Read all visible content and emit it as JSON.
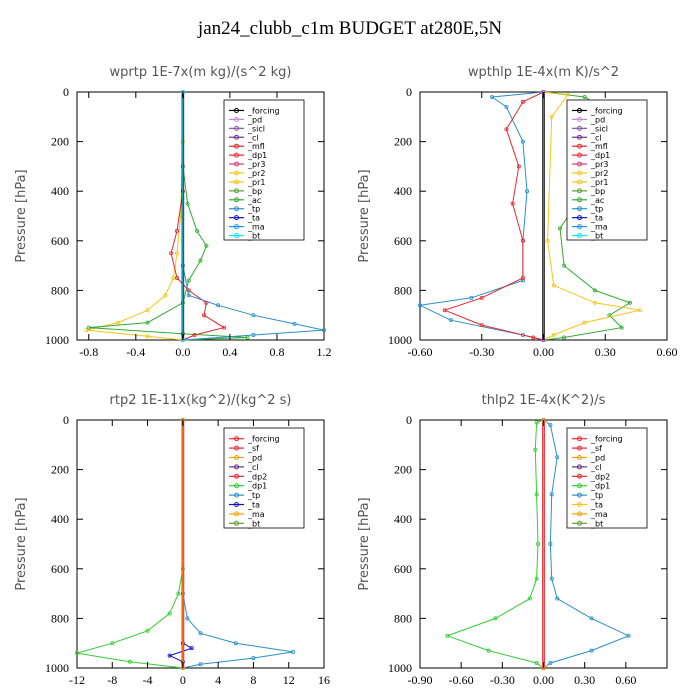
{
  "page": {
    "title": "jan24_clubb_c1m  BUDGET at280E,5N"
  },
  "chart_data": [
    {
      "type": "line",
      "title": "wprtp   1E-7x(m kg)/(s^2 kg)",
      "ylabel": "Pressure [hPa]",
      "xlim": [
        -0.9,
        1.2
      ],
      "ylim": [
        1000,
        0
      ],
      "xticks": [
        "-0.8",
        "-0.4",
        "0.0",
        "0.4",
        "0.8",
        "1.2"
      ],
      "yticks": [
        "0",
        "200",
        "400",
        "600",
        "800",
        "1000"
      ],
      "legend_position": "top-right",
      "legend": [
        "_forcing",
        "_pd",
        "_sicl",
        "_cl",
        "_mfl",
        "_dp1",
        "_pr3",
        "_pr2",
        "_pr1",
        "_bp",
        "_ac",
        "_tp",
        "_ta",
        "_ma",
        "_bt"
      ],
      "series": [
        {
          "name": "_pr1",
          "color": "#f5c518",
          "points": [
            [
              0,
              0
            ],
            [
              0,
              200
            ],
            [
              -0.02,
              500
            ],
            [
              -0.05,
              650
            ],
            [
              -0.08,
              750
            ],
            [
              -0.15,
              820
            ],
            [
              -0.3,
              880
            ],
            [
              -0.55,
              930
            ],
            [
              -0.82,
              960
            ],
            [
              -0.3,
              985
            ],
            [
              0,
              1000
            ]
          ]
        },
        {
          "name": "_ac",
          "color": "#33aa33",
          "points": [
            [
              0,
              0
            ],
            [
              0,
              300
            ],
            [
              0.04,
              450
            ],
            [
              0.12,
              560
            ],
            [
              0.2,
              620
            ],
            [
              0.15,
              680
            ],
            [
              0.05,
              760
            ],
            [
              0,
              850
            ],
            [
              -0.3,
              930
            ],
            [
              -0.8,
              950
            ],
            [
              0,
              975
            ],
            [
              0.55,
              990
            ],
            [
              0,
              1000
            ]
          ]
        },
        {
          "name": "_dp1",
          "color": "#e8262d",
          "points": [
            [
              0,
              0
            ],
            [
              0,
              400
            ],
            [
              -0.05,
              560
            ],
            [
              -0.1,
              650
            ],
            [
              -0.05,
              750
            ],
            [
              0.05,
              800
            ],
            [
              0.2,
              850
            ],
            [
              0.18,
              900
            ],
            [
              0.35,
              950
            ],
            [
              0.1,
              980
            ],
            [
              0,
              1000
            ]
          ]
        },
        {
          "name": "_tp",
          "color": "#2a8fc8",
          "points": [
            [
              0,
              0
            ],
            [
              0,
              700
            ],
            [
              0.05,
              820
            ],
            [
              0.3,
              860
            ],
            [
              0.6,
              900
            ],
            [
              0.95,
              935
            ],
            [
              1.2,
              960
            ],
            [
              0.6,
              980
            ],
            [
              0,
              1000
            ]
          ]
        },
        {
          "name": "_forcing",
          "color": "#000000",
          "points": [
            [
              0,
              0
            ],
            [
              0,
              1000
            ]
          ]
        },
        {
          "name": "_pd",
          "color": "#c08ad6",
          "points": [
            [
              0,
              0
            ],
            [
              0,
              1000
            ]
          ]
        },
        {
          "name": "_sicl",
          "color": "#8a4fb0",
          "points": [
            [
              0,
              0
            ],
            [
              0,
              1000
            ]
          ]
        },
        {
          "name": "_bt",
          "color": "#00e5ff",
          "points": [
            [
              0,
              0
            ],
            [
              0,
              1000
            ]
          ]
        }
      ]
    },
    {
      "type": "line",
      "title": "wpthlp   1E-4x(m K)/s^2",
      "ylabel": "Pressure [hPa]",
      "xlim": [
        -0.6,
        0.6
      ],
      "ylim": [
        1000,
        0
      ],
      "xticks": [
        "-0.60",
        "-0.30",
        "0.00",
        "0.30",
        "0.60"
      ],
      "yticks": [
        "0",
        "200",
        "400",
        "600",
        "800",
        "1000"
      ],
      "legend_position": "top-right",
      "legend": [
        "_forcing",
        "_pd",
        "_sicl",
        "_cl",
        "_mfl",
        "_dp1",
        "_pr3",
        "_pr2",
        "_pr1",
        "_bp",
        "_ac",
        "_tp",
        "_ta",
        "_ma",
        "_bt"
      ],
      "series": [
        {
          "name": "_ac",
          "color": "#33aa33",
          "points": [
            [
              0,
              0
            ],
            [
              0.2,
              20
            ],
            [
              0.32,
              80
            ],
            [
              0.33,
              250
            ],
            [
              0.2,
              400
            ],
            [
              0.08,
              550
            ],
            [
              0.1,
              700
            ],
            [
              0.25,
              800
            ],
            [
              0.42,
              850
            ],
            [
              0.32,
              900
            ],
            [
              0.38,
              950
            ],
            [
              0.1,
              990
            ],
            [
              0,
              1000
            ]
          ]
        },
        {
          "name": "_tp",
          "color": "#2a8fc8",
          "points": [
            [
              0,
              0
            ],
            [
              -0.25,
              20
            ],
            [
              -0.18,
              60
            ],
            [
              -0.1,
              200
            ],
            [
              -0.08,
              400
            ],
            [
              -0.1,
              600
            ],
            [
              -0.1,
              760
            ],
            [
              -0.35,
              830
            ],
            [
              -0.6,
              860
            ],
            [
              -0.45,
              920
            ],
            [
              -0.1,
              980
            ],
            [
              0,
              1000
            ]
          ]
        },
        {
          "name": "_pr1",
          "color": "#f5c518",
          "points": [
            [
              0,
              0
            ],
            [
              0.12,
              10
            ],
            [
              0.04,
              100
            ],
            [
              0.02,
              600
            ],
            [
              0.05,
              780
            ],
            [
              0.25,
              850
            ],
            [
              0.47,
              880
            ],
            [
              0.2,
              930
            ],
            [
              0.05,
              980
            ],
            [
              0,
              1000
            ]
          ]
        },
        {
          "name": "_dp1",
          "color": "#e8262d",
          "points": [
            [
              0,
              0
            ],
            [
              -0.1,
              40
            ],
            [
              -0.18,
              150
            ],
            [
              -0.12,
              300
            ],
            [
              -0.15,
              450
            ],
            [
              -0.1,
              600
            ],
            [
              -0.1,
              750
            ],
            [
              -0.3,
              830
            ],
            [
              -0.48,
              880
            ],
            [
              -0.3,
              940
            ],
            [
              -0.05,
              990
            ],
            [
              0,
              1000
            ]
          ]
        },
        {
          "name": "_forcing",
          "color": "#000000",
          "points": [
            [
              0,
              0
            ],
            [
              0,
              1000
            ]
          ]
        },
        {
          "name": "_pd",
          "color": "#c08ad6",
          "points": [
            [
              0,
              0
            ],
            [
              0,
              1000
            ]
          ]
        },
        {
          "name": "_sicl",
          "color": "#8a4fb0",
          "points": [
            [
              0,
              0
            ],
            [
              0,
              1000
            ]
          ]
        }
      ]
    },
    {
      "type": "line",
      "title": "rtp2   1E-11x(kg^2)/(kg^2 s)",
      "ylabel": "Pressure [hPa]",
      "xlim": [
        -12,
        16
      ],
      "ylim": [
        1000,
        0
      ],
      "xticks": [
        "-12",
        "-8",
        "-4",
        "0",
        "4",
        "8",
        "12",
        "16"
      ],
      "yticks": [
        "0",
        "200",
        "400",
        "600",
        "800",
        "1000"
      ],
      "legend_position": "top-right",
      "legend": [
        "_forcing",
        "_sf",
        "_pd",
        "_cl",
        "_dp2",
        "_dp1",
        "_tp",
        "_ta",
        "_ma",
        "_bt"
      ],
      "series": [
        {
          "name": "_dp1",
          "color": "#33cc33",
          "points": [
            [
              0,
              0
            ],
            [
              0,
              600
            ],
            [
              -0.5,
              700
            ],
            [
              -1.5,
              780
            ],
            [
              -4,
              850
            ],
            [
              -8,
              900
            ],
            [
              -12,
              940
            ],
            [
              -6,
              975
            ],
            [
              0,
              1000
            ]
          ]
        },
        {
          "name": "_tp",
          "color": "#2a8fc8",
          "points": [
            [
              0,
              0
            ],
            [
              0,
              700
            ],
            [
              0.5,
              800
            ],
            [
              2,
              860
            ],
            [
              6,
              900
            ],
            [
              12.5,
              935
            ],
            [
              8,
              960
            ],
            [
              2,
              985
            ],
            [
              0,
              1000
            ]
          ]
        },
        {
          "name": "_ta",
          "color": "#1010cc",
          "points": [
            [
              0,
              0
            ],
            [
              0,
              900
            ],
            [
              1,
              920
            ],
            [
              -1.5,
              950
            ],
            [
              0,
              975
            ],
            [
              0,
              1000
            ]
          ]
        },
        {
          "name": "_forcing",
          "color": "#e8262d",
          "points": [
            [
              0,
              0
            ],
            [
              0,
              1000
            ]
          ]
        },
        {
          "name": "_sf",
          "color": "#e8262d",
          "points": [
            [
              0,
              0
            ],
            [
              0,
              1000
            ]
          ]
        },
        {
          "name": "_pd",
          "color": "#f5a000",
          "points": [
            [
              0,
              0
            ],
            [
              0,
              1000
            ]
          ]
        }
      ]
    },
    {
      "type": "line",
      "title": "thlp2   1E-4x(K^2)/s",
      "ylabel": "Pressure [hPa]",
      "xlim": [
        -0.9,
        0.9
      ],
      "ylim": [
        1000,
        0
      ],
      "xticks": [
        "-0.90",
        "-0.60",
        "-0.30",
        "0.00",
        "0.30",
        "0.60"
      ],
      "yticks": [
        "0",
        "200",
        "400",
        "600",
        "800",
        "1000"
      ],
      "legend_position": "top-right",
      "legend": [
        "_forcing",
        "_sf",
        "_pd",
        "_cl",
        "_dp2",
        "_dp1",
        "_tp",
        "_ta",
        "_ma",
        "_bt"
      ],
      "series": [
        {
          "name": "_dp1",
          "color": "#33cc33",
          "points": [
            [
              0,
              0
            ],
            [
              -0.05,
              10
            ],
            [
              -0.06,
              120
            ],
            [
              -0.05,
              300
            ],
            [
              -0.04,
              500
            ],
            [
              -0.05,
              640
            ],
            [
              -0.1,
              720
            ],
            [
              -0.35,
              800
            ],
            [
              -0.7,
              870
            ],
            [
              -0.4,
              930
            ],
            [
              -0.05,
              980
            ],
            [
              0,
              1000
            ]
          ]
        },
        {
          "name": "_tp",
          "color": "#2a8fc8",
          "points": [
            [
              0,
              0
            ],
            [
              0.05,
              20
            ],
            [
              0.1,
              150
            ],
            [
              0.06,
              300
            ],
            [
              0.05,
              500
            ],
            [
              0.06,
              640
            ],
            [
              0.1,
              720
            ],
            [
              0.35,
              800
            ],
            [
              0.62,
              870
            ],
            [
              0.35,
              930
            ],
            [
              0.05,
              980
            ],
            [
              0,
              1000
            ]
          ]
        },
        {
          "name": "_forcing",
          "color": "#e8262d",
          "points": [
            [
              0,
              0
            ],
            [
              0,
              1000
            ]
          ]
        },
        {
          "name": "_sf",
          "color": "#e8262d",
          "points": [
            [
              0,
              0
            ],
            [
              0,
              1000
            ]
          ]
        },
        {
          "name": "_pd",
          "color": "#f5a000",
          "points": [
            [
              0,
              0
            ],
            [
              0,
              1000
            ]
          ]
        }
      ]
    }
  ]
}
